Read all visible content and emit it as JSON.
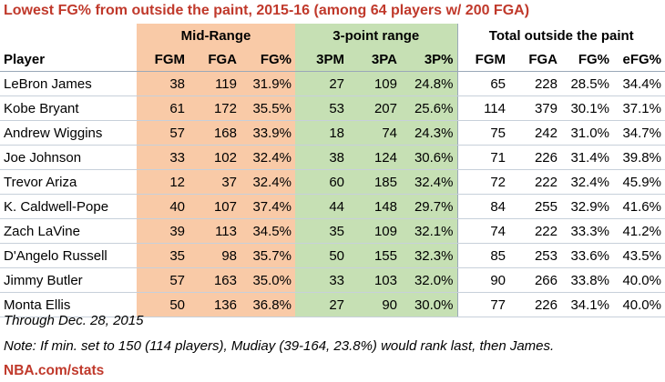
{
  "title": "Lowest FG% from outside the paint, 2015-16 (among 64 players w/ 200 FGA)",
  "groups": {
    "mid": "Mid-Range",
    "three": "3-point range",
    "total": "Total outside the paint"
  },
  "columns": [
    "Player",
    "FGM",
    "FGA",
    "FG%",
    "3PM",
    "3PA",
    "3P%",
    "FGM",
    "FGA",
    "FG%",
    "eFG%"
  ],
  "rows": [
    [
      "LeBron James",
      "38",
      "119",
      "31.9%",
      "27",
      "109",
      "24.8%",
      "65",
      "228",
      "28.5%",
      "34.4%"
    ],
    [
      "Kobe Bryant",
      "61",
      "172",
      "35.5%",
      "53",
      "207",
      "25.6%",
      "114",
      "379",
      "30.1%",
      "37.1%"
    ],
    [
      "Andrew Wiggins",
      "57",
      "168",
      "33.9%",
      "18",
      "74",
      "24.3%",
      "75",
      "242",
      "31.0%",
      "34.7%"
    ],
    [
      "Joe Johnson",
      "33",
      "102",
      "32.4%",
      "38",
      "124",
      "30.6%",
      "71",
      "226",
      "31.4%",
      "39.8%"
    ],
    [
      "Trevor Ariza",
      "12",
      "37",
      "32.4%",
      "60",
      "185",
      "32.4%",
      "72",
      "222",
      "32.4%",
      "45.9%"
    ],
    [
      "K. Caldwell-Pope",
      "40",
      "107",
      "37.4%",
      "44",
      "148",
      "29.7%",
      "84",
      "255",
      "32.9%",
      "41.6%"
    ],
    [
      "Zach LaVine",
      "39",
      "113",
      "34.5%",
      "35",
      "109",
      "32.1%",
      "74",
      "222",
      "33.3%",
      "41.2%"
    ],
    [
      "D'Angelo Russell",
      "35",
      "98",
      "35.7%",
      "50",
      "155",
      "32.3%",
      "85",
      "253",
      "33.6%",
      "43.5%"
    ],
    [
      "Jimmy Butler",
      "57",
      "163",
      "35.0%",
      "33",
      "103",
      "32.0%",
      "90",
      "266",
      "33.8%",
      "40.0%"
    ],
    [
      "Monta Ellis",
      "50",
      "136",
      "36.8%",
      "27",
      "90",
      "30.0%",
      "77",
      "226",
      "34.1%",
      "40.0%"
    ]
  ],
  "footnote_date": "Through Dec. 28, 2015",
  "footnote_note": "Note: If min. set to 150 (114 players), Mudiay (39-164, 23.8%) would rank last, then James.",
  "source": "NBA.com/stats"
}
